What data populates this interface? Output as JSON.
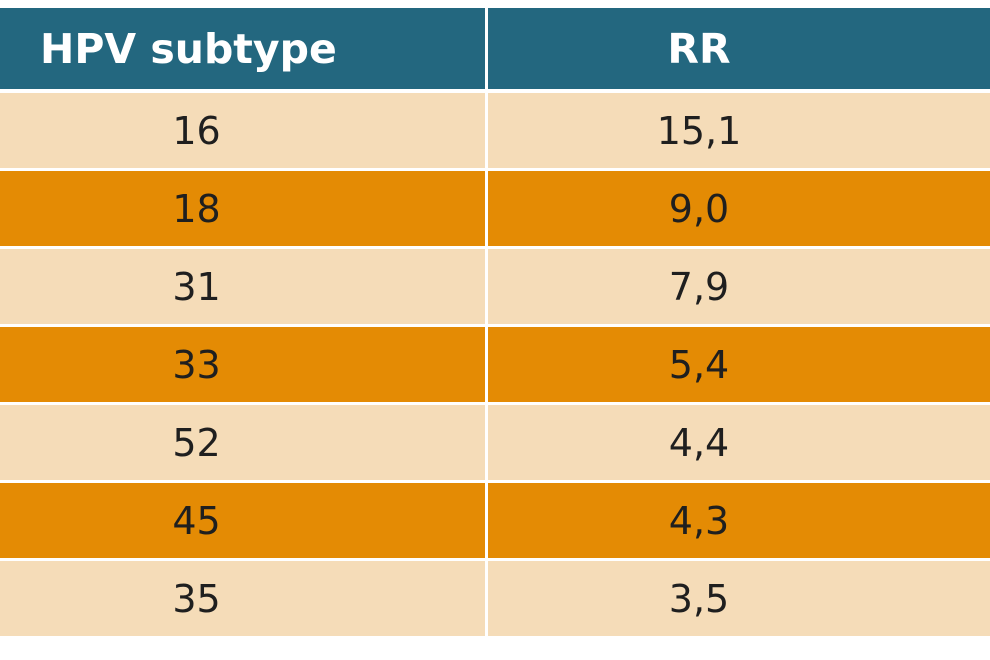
{
  "chart_data": {
    "type": "table",
    "columns": [
      "HPV subtype",
      "RR"
    ],
    "rows": [
      {
        "subtype": "16",
        "rr": "15,1"
      },
      {
        "subtype": "18",
        "rr": "9,0"
      },
      {
        "subtype": "31",
        "rr": "7,9"
      },
      {
        "subtype": "33",
        "rr": "5,4"
      },
      {
        "subtype": "52",
        "rr": "4,4"
      },
      {
        "subtype": "45",
        "rr": "4,3"
      },
      {
        "subtype": "35",
        "rr": "3,5"
      }
    ],
    "colors": {
      "header_bg": "#23677f",
      "header_text": "#ffffff",
      "row_light": "#f5dcb8",
      "row_dark": "#e48b04"
    }
  }
}
